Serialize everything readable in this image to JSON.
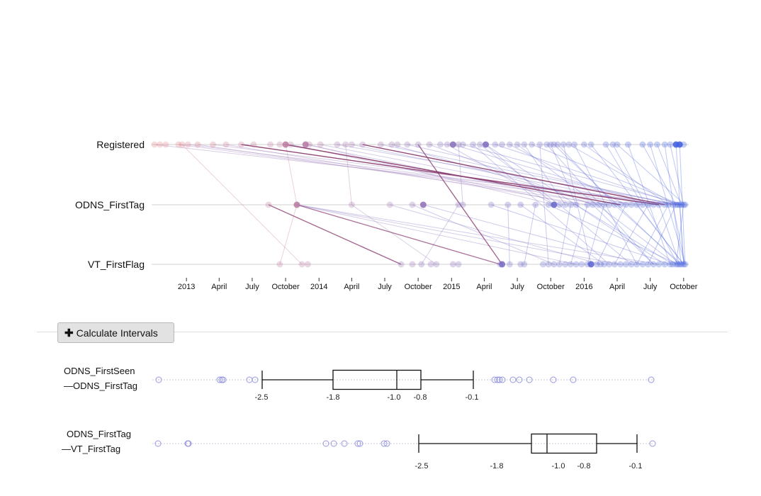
{
  "chart_data": [
    {
      "type": "scatter",
      "description_rows": [
        "Registered",
        "ODNS_FirstTag",
        "VT_FirstFlag"
      ],
      "x_ticks": [
        "2013",
        "April",
        "July",
        "October",
        "2014",
        "April",
        "July",
        "October",
        "2015",
        "April",
        "July",
        "October",
        "2016",
        "April",
        "July",
        "October"
      ],
      "x_tick_dates": [
        "2013-01-01",
        "2013-04-01",
        "2013-07-01",
        "2013-10-01",
        "2014-01-01",
        "2014-04-01",
        "2014-07-01",
        "2014-10-01",
        "2015-01-01",
        "2015-04-01",
        "2015-07-01",
        "2015-10-01",
        "2016-01-01",
        "2016-04-01",
        "2016-07-01",
        "2016-10-01"
      ],
      "xlim": [
        "2012-10-01",
        "2016-10-15"
      ],
      "color_scale": {
        "start": "#e8888f",
        "end": "#4060e0"
      },
      "series": [
        {
          "row": "Registered",
          "dates": [
            "2012-10-05",
            "2012-10-20",
            "2012-11-05",
            "2012-12-10",
            "2012-12-20",
            "2013-01-05",
            "2013-02-01",
            "2013-03-15",
            "2013-04-20",
            "2013-06-01",
            "2013-07-05",
            "2013-08-20",
            "2013-09-15",
            "2013-10-01",
            "2013-10-15",
            "2013-11-25",
            "2013-12-05",
            "2014-01-05",
            "2014-02-20",
            "2014-03-15",
            "2014-04-01",
            "2014-05-01",
            "2014-06-20",
            "2014-07-20",
            "2014-08-05",
            "2014-09-01",
            "2014-10-01",
            "2014-11-01",
            "2014-12-01",
            "2014-12-20",
            "2015-01-05",
            "2015-01-20",
            "2015-02-01",
            "2015-03-01",
            "2015-03-20",
            "2015-04-05",
            "2015-05-01",
            "2015-05-20",
            "2015-06-10",
            "2015-07-01",
            "2015-07-20",
            "2015-08-10",
            "2015-09-01",
            "2015-09-20",
            "2015-10-01",
            "2015-10-10",
            "2015-10-20",
            "2015-11-05",
            "2015-11-20",
            "2015-12-05",
            "2016-01-01",
            "2016-01-20",
            "2016-03-01",
            "2016-03-20",
            "2016-04-01",
            "2016-05-01",
            "2016-06-10",
            "2016-07-01",
            "2016-07-20",
            "2016-08-10",
            "2016-08-25",
            "2016-09-10",
            "2016-09-20",
            "2016-10-01"
          ]
        },
        {
          "row": "ODNS_FirstTag",
          "dates": [
            "2013-08-15",
            "2013-11-01",
            "2014-04-01",
            "2014-07-15",
            "2014-09-15",
            "2014-10-15",
            "2015-01-20",
            "2015-02-01",
            "2015-04-20",
            "2015-06-05",
            "2015-07-10",
            "2015-08-20",
            "2015-09-25",
            "2015-10-10",
            "2015-10-25",
            "2015-11-10",
            "2015-11-25",
            "2015-12-10",
            "2016-01-10",
            "2016-01-25",
            "2016-02-10",
            "2016-02-25",
            "2016-03-10",
            "2016-03-25",
            "2016-04-10",
            "2016-04-25",
            "2016-05-10",
            "2016-05-25",
            "2016-06-10",
            "2016-06-25",
            "2016-07-10",
            "2016-07-25",
            "2016-08-10",
            "2016-08-20",
            "2016-09-01",
            "2016-09-10",
            "2016-09-15",
            "2016-09-20",
            "2016-09-25",
            "2016-10-01",
            "2016-10-05"
          ]
        },
        {
          "row": "VT_FirstFlag",
          "dates": [
            "2013-09-15",
            "2013-11-15",
            "2013-12-01",
            "2014-08-15",
            "2014-09-15",
            "2014-10-10",
            "2014-11-05",
            "2014-11-20",
            "2015-01-05",
            "2015-01-20",
            "2015-05-15",
            "2015-05-20",
            "2015-06-10",
            "2015-07-10",
            "2015-07-20",
            "2015-09-10",
            "2015-09-25",
            "2015-10-10",
            "2015-10-25",
            "2015-11-10",
            "2015-11-25",
            "2015-12-10",
            "2015-12-25",
            "2016-01-10",
            "2016-01-20",
            "2016-02-05",
            "2016-02-15",
            "2016-02-25",
            "2016-03-10",
            "2016-03-25",
            "2016-04-10",
            "2016-04-25",
            "2016-05-10",
            "2016-05-25",
            "2016-06-10",
            "2016-06-25",
            "2016-07-10",
            "2016-07-25",
            "2016-08-10",
            "2016-08-25",
            "2016-09-01",
            "2016-09-10",
            "2016-09-15",
            "2016-09-20",
            "2016-09-25",
            "2016-10-01",
            "2016-10-05"
          ]
        }
      ],
      "links": [
        [
          "Registered",
          "2012-10-05",
          "ODNS_FirstTag",
          "2016-09-20"
        ],
        [
          "Registered",
          "2012-12-10",
          "ODNS_FirstTag",
          "2016-06-10"
        ],
        [
          "Registered",
          "2012-12-20",
          "VT_FirstFlag",
          "2013-11-15"
        ],
        [
          "Registered",
          "2013-01-05",
          "ODNS_FirstTag",
          "2016-08-20"
        ],
        [
          "Registered",
          "2013-02-01",
          "ODNS_FirstTag",
          "2016-03-10"
        ],
        [
          "Registered",
          "2013-03-15",
          "ODNS_FirstTag",
          "2016-09-10"
        ],
        [
          "Registered",
          "2013-04-20",
          "ODNS_FirstTag",
          "2016-01-10"
        ],
        [
          "Registered",
          "2013-06-01",
          "ODNS_FirstTag",
          "2016-07-25"
        ],
        [
          "Registered",
          "2013-10-01",
          "ODNS_FirstTag",
          "2013-11-01"
        ],
        [
          "Registered",
          "2013-10-01",
          "ODNS_FirstTag",
          "2016-04-10"
        ],
        [
          "Registered",
          "2013-10-15",
          "ODNS_FirstTag",
          "2015-12-10"
        ],
        [
          "Registered",
          "2013-11-25",
          "ODNS_FirstTag",
          "2016-02-10"
        ],
        [
          "Registered",
          "2013-12-05",
          "ODNS_FirstTag",
          "2015-10-10"
        ],
        [
          "Registered",
          "2014-01-05",
          "ODNS_FirstTag",
          "2016-05-10"
        ],
        [
          "Registered",
          "2014-02-20",
          "ODNS_FirstTag",
          "2016-09-25"
        ],
        [
          "Registered",
          "2014-03-15",
          "ODNS_FirstTag",
          "2014-04-01"
        ],
        [
          "Registered",
          "2014-04-01",
          "ODNS_FirstTag",
          "2016-06-25"
        ],
        [
          "Registered",
          "2014-05-01",
          "ODNS_FirstTag",
          "2016-08-10"
        ],
        [
          "Registered",
          "2014-06-20",
          "ODNS_FirstTag",
          "2016-09-15"
        ],
        [
          "Registered",
          "2014-07-20",
          "ODNS_FirstTag",
          "2016-02-25"
        ],
        [
          "Registered",
          "2014-09-01",
          "ODNS_FirstTag",
          "2016-09-01"
        ],
        [
          "Registered",
          "2014-10-01",
          "VT_FirstFlag",
          "2015-05-20"
        ],
        [
          "Registered",
          "2014-11-01",
          "ODNS_FirstTag",
          "2016-01-25"
        ],
        [
          "Registered",
          "2014-12-20",
          "ODNS_FirstTag",
          "2015-10-10"
        ],
        [
          "Registered",
          "2015-01-05",
          "ODNS_FirstTag",
          "2016-07-10"
        ],
        [
          "Registered",
          "2015-01-20",
          "ODNS_FirstTag",
          "2015-02-01"
        ],
        [
          "Registered",
          "2015-02-01",
          "ODNS_FirstTag",
          "2016-10-01"
        ],
        [
          "Registered",
          "2015-03-01",
          "VT_FirstFlag",
          "2016-03-10"
        ],
        [
          "Registered",
          "2015-03-20",
          "ODNS_FirstTag",
          "2015-10-25"
        ],
        [
          "Registered",
          "2015-04-05",
          "ODNS_FirstTag",
          "2015-10-10"
        ],
        [
          "Registered",
          "2015-04-05",
          "VT_FirstFlag",
          "2016-08-10"
        ],
        [
          "Registered",
          "2015-05-01",
          "ODNS_FirstTag",
          "2016-09-20"
        ],
        [
          "Registered",
          "2015-06-10",
          "ODNS_FirstTag",
          "2016-04-25"
        ],
        [
          "Registered",
          "2015-07-01",
          "VT_FirstFlag",
          "2016-09-10"
        ],
        [
          "Registered",
          "2015-07-20",
          "ODNS_FirstTag",
          "2015-11-10"
        ],
        [
          "Registered",
          "2015-08-10",
          "ODNS_FirstTag",
          "2016-09-25"
        ],
        [
          "Registered",
          "2015-09-01",
          "VT_FirstFlag",
          "2015-09-25"
        ],
        [
          "Registered",
          "2015-09-20",
          "VT_FirstFlag",
          "2016-07-10"
        ],
        [
          "Registered",
          "2015-10-01",
          "ODNS_FirstTag",
          "2015-12-10"
        ],
        [
          "Registered",
          "2015-10-10",
          "VT_FirstFlag",
          "2016-09-20"
        ],
        [
          "Registered",
          "2015-10-20",
          "ODNS_FirstTag",
          "2016-03-25"
        ],
        [
          "Registered",
          "2015-11-05",
          "VT_FirstFlag",
          "2016-01-20"
        ],
        [
          "Registered",
          "2015-11-20",
          "ODNS_FirstTag",
          "2016-09-10"
        ],
        [
          "Registered",
          "2015-12-05",
          "VT_FirstFlag",
          "2016-05-25"
        ],
        [
          "Registered",
          "2016-01-01",
          "ODNS_FirstTag",
          "2016-08-20"
        ],
        [
          "Registered",
          "2016-01-20",
          "VT_FirstFlag",
          "2016-10-01"
        ],
        [
          "Registered",
          "2016-03-01",
          "ODNS_FirstTag",
          "2016-06-10"
        ],
        [
          "Registered",
          "2016-03-20",
          "VT_FirstFlag",
          "2016-09-15"
        ],
        [
          "Registered",
          "2016-04-01",
          "ODNS_FirstTag",
          "2016-10-05"
        ],
        [
          "Registered",
          "2016-05-01",
          "VT_FirstFlag",
          "2016-08-25"
        ],
        [
          "Registered",
          "2016-06-10",
          "ODNS_FirstTag",
          "2016-09-10"
        ],
        [
          "Registered",
          "2016-07-01",
          "VT_FirstFlag",
          "2016-10-05"
        ],
        [
          "Registered",
          "2016-07-20",
          "ODNS_FirstTag",
          "2016-09-25"
        ],
        [
          "Registered",
          "2016-08-10",
          "VT_FirstFlag",
          "2016-09-25"
        ],
        [
          "Registered",
          "2016-08-25",
          "ODNS_FirstTag",
          "2016-10-01"
        ],
        [
          "Registered",
          "2016-09-10",
          "VT_FirstFlag",
          "2016-10-01"
        ],
        [
          "Registered",
          "2016-09-20",
          "VT_FirstFlag",
          "2016-10-05"
        ],
        [
          "ODNS_FirstTag",
          "2013-08-15",
          "VT_FirstFlag",
          "2014-08-15"
        ],
        [
          "ODNS_FirstTag",
          "2013-11-01",
          "VT_FirstFlag",
          "2015-05-15"
        ],
        [
          "ODNS_FirstTag",
          "2013-11-01",
          "VT_FirstFlag",
          "2015-12-10"
        ],
        [
          "ODNS_FirstTag",
          "2013-11-01",
          "VT_FirstFlag",
          "2016-07-25"
        ],
        [
          "ODNS_FirstTag",
          "2013-11-01",
          "VT_FirstFlag",
          "2016-04-10"
        ],
        [
          "ODNS_FirstTag",
          "2013-11-01",
          "VT_FirstFlag",
          "2013-09-15"
        ],
        [
          "ODNS_FirstTag",
          "2014-04-01",
          "VT_FirstFlag",
          "2014-11-20"
        ],
        [
          "ODNS_FirstTag",
          "2014-07-15",
          "VT_FirstFlag",
          "2016-02-15"
        ],
        [
          "ODNS_FirstTag",
          "2014-09-15",
          "VT_FirstFlag",
          "2015-10-10"
        ],
        [
          "ODNS_FirstTag",
          "2014-10-15",
          "VT_FirstFlag",
          "2016-06-10"
        ],
        [
          "ODNS_FirstTag",
          "2015-01-20",
          "VT_FirstFlag",
          "2014-10-10"
        ],
        [
          "ODNS_FirstTag",
          "2015-04-20",
          "VT_FirstFlag",
          "2016-08-25"
        ],
        [
          "ODNS_FirstTag",
          "2015-06-05",
          "VT_FirstFlag",
          "2015-06-10"
        ],
        [
          "ODNS_FirstTag",
          "2015-07-10",
          "VT_FirstFlag",
          "2016-02-25"
        ],
        [
          "ODNS_FirstTag",
          "2015-08-20",
          "VT_FirstFlag",
          "2015-07-20"
        ],
        [
          "ODNS_FirstTag",
          "2015-09-25",
          "VT_FirstFlag",
          "2016-09-15"
        ],
        [
          "ODNS_FirstTag",
          "2015-10-25",
          "VT_FirstFlag",
          "2016-05-10"
        ],
        [
          "ODNS_FirstTag",
          "2015-11-25",
          "VT_FirstFlag",
          "2015-10-25"
        ],
        [
          "ODNS_FirstTag",
          "2015-12-10",
          "VT_FirstFlag",
          "2016-09-01"
        ],
        [
          "ODNS_FirstTag",
          "2016-01-10",
          "VT_FirstFlag",
          "2015-11-25"
        ],
        [
          "ODNS_FirstTag",
          "2016-01-25",
          "VT_FirstFlag",
          "2016-07-10"
        ],
        [
          "ODNS_FirstTag",
          "2016-02-25",
          "VT_FirstFlag",
          "2016-01-10"
        ],
        [
          "ODNS_FirstTag",
          "2016-03-25",
          "VT_FirstFlag",
          "2016-09-25"
        ],
        [
          "ODNS_FirstTag",
          "2016-04-25",
          "VT_FirstFlag",
          "2016-02-05"
        ],
        [
          "ODNS_FirstTag",
          "2016-05-25",
          "VT_FirstFlag",
          "2016-10-01"
        ],
        [
          "ODNS_FirstTag",
          "2016-06-25",
          "VT_FirstFlag",
          "2016-03-25"
        ],
        [
          "ODNS_FirstTag",
          "2016-07-25",
          "VT_FirstFlag",
          "2016-09-20"
        ],
        [
          "ODNS_FirstTag",
          "2016-08-20",
          "VT_FirstFlag",
          "2016-05-25"
        ],
        [
          "ODNS_FirstTag",
          "2016-09-01",
          "VT_FirstFlag",
          "2016-10-05"
        ],
        [
          "ODNS_FirstTag",
          "2016-09-10",
          "VT_FirstFlag",
          "2016-06-25"
        ],
        [
          "ODNS_FirstTag",
          "2016-09-20",
          "VT_FirstFlag",
          "2016-10-01"
        ],
        [
          "ODNS_FirstTag",
          "2016-10-01",
          "VT_FirstFlag",
          "2016-09-10"
        ]
      ]
    },
    {
      "type": "box",
      "xlim": [
        -3.0,
        0.2
      ],
      "boxes": [
        {
          "label_line1": "ODNS_FirstSeen",
          "label_line2": "—ODNS_FirstTag",
          "whisker_low": -2.5,
          "q1": -1.8,
          "median": -1.0,
          "q3": -0.8,
          "whisker_high": -0.1,
          "tick_labels": [
            "-2.5",
            "-1.8",
            "-1.0",
            "-0.8",
            "-0.1"
          ],
          "outliers": [
            -2.93,
            -2.62,
            -2.61,
            -2.6,
            -2.54,
            -2.52,
            -0.02,
            0.0,
            0.01,
            0.02,
            0.06,
            0.09,
            0.14,
            0.33,
            0.43,
            0.81
          ]
        },
        {
          "label_line1": "ODNS_FirstTag",
          "label_line2": "—VT_FirstTag",
          "whisker_low": -2.5,
          "q1": -1.8,
          "median": -1.0,
          "q3": -0.8,
          "whisker_high": -0.1,
          "tick_labels": [
            "-2.5",
            "-1.8",
            "-1.0",
            "-0.8",
            "-0.1"
          ],
          "outliers": [
            -4.01,
            -3.8,
            -3.8,
            -2.83,
            -2.8,
            -2.75,
            -2.69,
            -2.68,
            -2.6,
            -2.59,
            -0.01
          ]
        }
      ]
    }
  ],
  "ui": {
    "calc_button_label": "Calculate Intervals",
    "calc_button_icon": "plus-icon",
    "row_labels": [
      "Registered",
      "ODNS_FirstTag",
      "VT_FirstFlag"
    ]
  }
}
